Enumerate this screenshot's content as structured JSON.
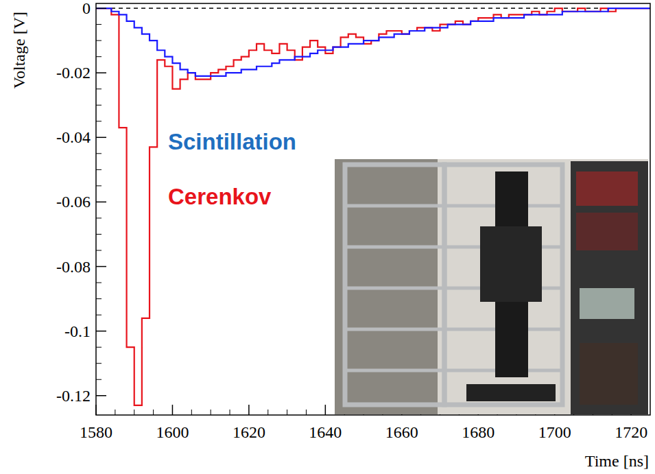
{
  "chart_data": {
    "type": "line",
    "line_style": "step",
    "x_label": "Time [ns]",
    "y_label": "Voltage [V]",
    "xlim": [
      1580,
      1725
    ],
    "ylim": [
      -0.126,
      0.0015
    ],
    "xticks": [
      1580,
      1600,
      1620,
      1640,
      1660,
      1680,
      1700,
      1720
    ],
    "yticks": [
      -0.12,
      -0.1,
      -0.08,
      -0.06,
      -0.04,
      -0.02,
      0
    ],
    "grid": false,
    "legend": "center",
    "x": [
      1580,
      1582,
      1584,
      1586,
      1588,
      1590,
      1592,
      1594,
      1596,
      1598,
      1600,
      1602,
      1604,
      1606,
      1608,
      1610,
      1612,
      1614,
      1616,
      1618,
      1620,
      1622,
      1624,
      1626,
      1628,
      1630,
      1632,
      1634,
      1636,
      1638,
      1640,
      1642,
      1644,
      1646,
      1648,
      1650,
      1652,
      1654,
      1656,
      1658,
      1660,
      1662,
      1664,
      1666,
      1668,
      1670,
      1672,
      1674,
      1676,
      1678,
      1680,
      1682,
      1684,
      1686,
      1688,
      1690,
      1692,
      1694,
      1696,
      1698,
      1700,
      1702,
      1704,
      1706,
      1708,
      1710,
      1712,
      1714,
      1716,
      1718,
      1720,
      1722,
      1724
    ],
    "series": [
      {
        "name": "Scintillation",
        "color": "#1a1aff",
        "label_color": "#1f6fc0",
        "values": [
          0,
          0,
          -0.001,
          -0.002,
          -0.004,
          -0.006,
          -0.008,
          -0.01,
          -0.013,
          -0.015,
          -0.017,
          -0.019,
          -0.02,
          -0.021,
          -0.021,
          -0.021,
          -0.021,
          -0.02,
          -0.02,
          -0.019,
          -0.019,
          -0.018,
          -0.018,
          -0.017,
          -0.016,
          -0.016,
          -0.015,
          -0.015,
          -0.014,
          -0.013,
          -0.013,
          -0.012,
          -0.012,
          -0.011,
          -0.011,
          -0.01,
          -0.01,
          -0.009,
          -0.009,
          -0.008,
          -0.008,
          -0.007,
          -0.007,
          -0.006,
          -0.006,
          -0.006,
          -0.005,
          -0.005,
          -0.005,
          -0.004,
          -0.004,
          -0.004,
          -0.003,
          -0.003,
          -0.003,
          -0.003,
          -0.002,
          -0.002,
          -0.002,
          -0.002,
          -0.002,
          -0.001,
          -0.001,
          -0.001,
          -0.001,
          -0.001,
          -0.001,
          0,
          0,
          0,
          0,
          0,
          0
        ]
      },
      {
        "name": "Cerenkov",
        "color": "#e8141c",
        "label_color": "#e8141c",
        "values": [
          0,
          0,
          -0.002,
          -0.037,
          -0.105,
          -0.123,
          -0.096,
          -0.043,
          -0.016,
          -0.018,
          -0.025,
          -0.022,
          -0.02,
          -0.022,
          -0.022,
          -0.02,
          -0.019,
          -0.018,
          -0.016,
          -0.015,
          -0.013,
          -0.011,
          -0.013,
          -0.014,
          -0.011,
          -0.013,
          -0.016,
          -0.012,
          -0.01,
          -0.012,
          -0.014,
          -0.012,
          -0.009,
          -0.008,
          -0.009,
          -0.011,
          -0.01,
          -0.008,
          -0.007,
          -0.007,
          -0.008,
          -0.007,
          -0.006,
          -0.006,
          -0.007,
          -0.005,
          -0.005,
          -0.004,
          -0.005,
          -0.004,
          -0.003,
          -0.003,
          -0.002,
          -0.003,
          -0.002,
          -0.002,
          -0.002,
          -0.001,
          -0.002,
          -0.001,
          0,
          -0.001,
          -0.001,
          0,
          -0.001,
          -0.001,
          0,
          -0.001,
          0,
          0,
          0,
          0,
          0
        ]
      }
    ]
  }
}
